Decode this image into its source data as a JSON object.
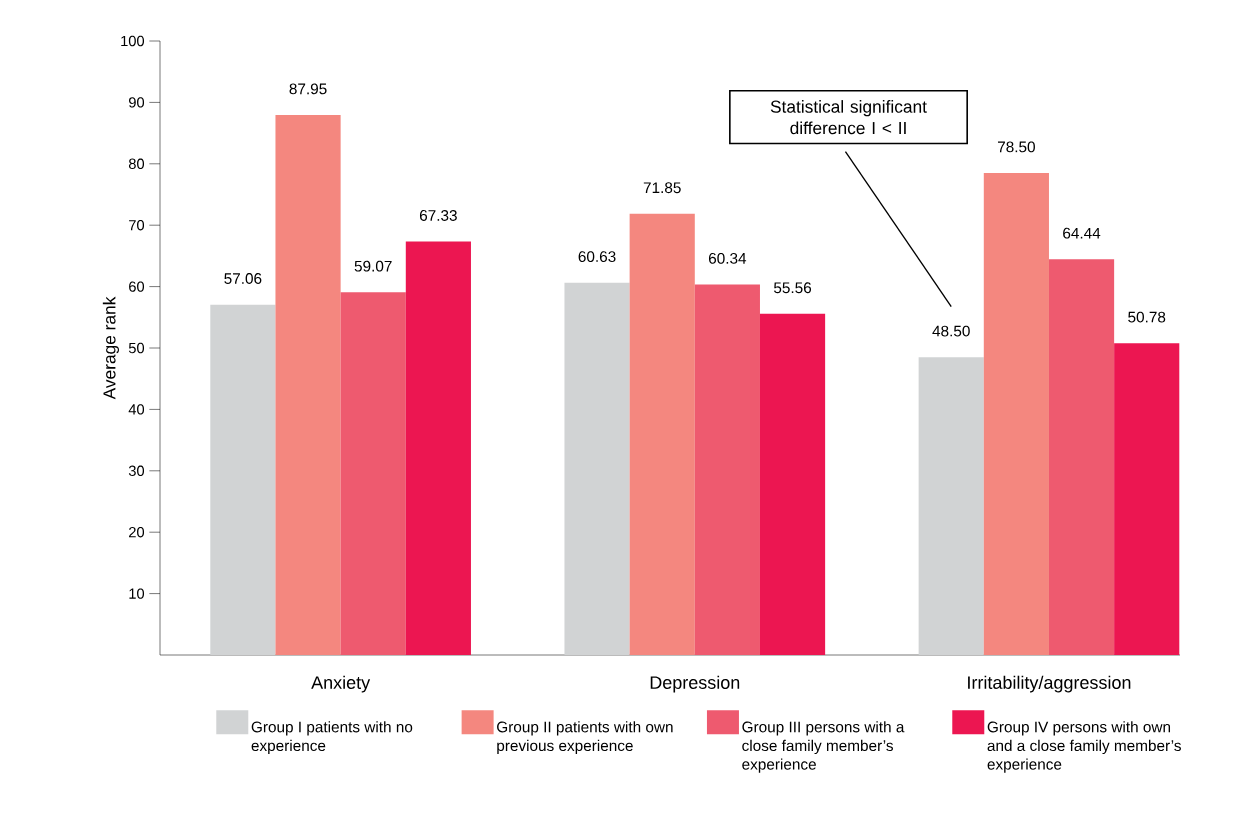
{
  "chart_data": {
    "type": "bar",
    "ylabel": "Average rank",
    "categories": [
      "Anxiety",
      "Depression",
      "Irritability/aggression"
    ],
    "series": [
      {
        "name": "Group I patients with no experience",
        "color": "#d1d3d4",
        "values": [
          57.06,
          60.63,
          48.5
        ],
        "value_labels": [
          "57.06",
          "60.63",
          "48.50"
        ]
      },
      {
        "name": "Group II patients with own previous experience",
        "color": "#f4877f",
        "values": [
          87.95,
          71.85,
          78.5
        ],
        "value_labels": [
          "87.95",
          "71.85",
          "78.50"
        ]
      },
      {
        "name": "Group III persons with a close family member’s experience",
        "color": "#ee5a6f",
        "values": [
          59.07,
          60.34,
          64.44
        ],
        "value_labels": [
          "59.07",
          "60.34",
          "64.44"
        ]
      },
      {
        "name": "Group IV persons with own and a close family member’s experience",
        "color": "#ec1651",
        "values": [
          67.33,
          55.56,
          50.78
        ],
        "value_labels": [
          "67.33",
          "55.56",
          "50.78"
        ]
      }
    ],
    "ylim": [
      0,
      100
    ],
    "yticks": [
      10,
      20,
      30,
      40,
      50,
      60,
      70,
      80,
      90,
      100
    ],
    "grid": false,
    "legend": "bottom",
    "annotations": [
      "Statistical significant difference I < II"
    ]
  }
}
